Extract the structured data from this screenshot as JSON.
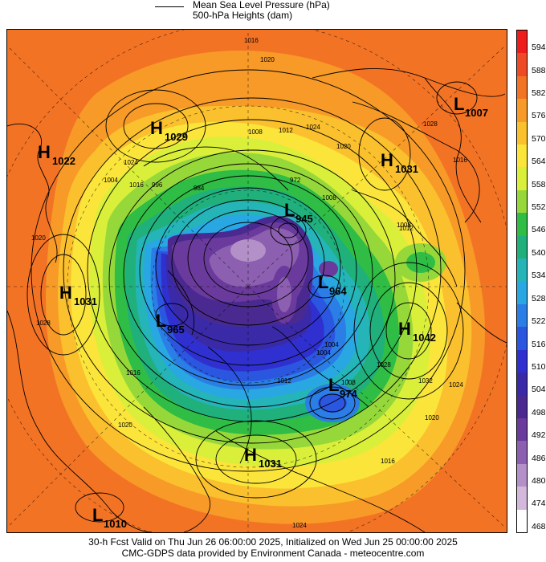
{
  "legend": {
    "line_label": "Mean Sea Level Pressure (hPa)",
    "fill_label": "500-hPa Heights (dam)"
  },
  "colorbar": {
    "levels": [
      "594",
      "588",
      "582",
      "576",
      "570",
      "564",
      "558",
      "552",
      "546",
      "540",
      "534",
      "528",
      "522",
      "516",
      "510",
      "504",
      "498",
      "492",
      "486",
      "480",
      "474",
      "468"
    ],
    "colors": [
      "#ee1c1c",
      "#ef4a26",
      "#f37325",
      "#f79a27",
      "#fbc02d",
      "#fbe53b",
      "#d9ef3a",
      "#96d83a",
      "#2fbd45",
      "#1fb07c",
      "#25b4b8",
      "#29a7e3",
      "#2a7ee6",
      "#2b56e0",
      "#2f30cf",
      "#3a2aa8",
      "#4a2a90",
      "#6a3a9c",
      "#8c5fb0",
      "#b391c8",
      "#d3b8dc",
      "#ffffff"
    ]
  },
  "systems": [
    {
      "type": "H",
      "value": "1029"
    },
    {
      "type": "H",
      "value": "1022"
    },
    {
      "type": "H",
      "value": "1031"
    },
    {
      "type": "L",
      "value": "1007"
    },
    {
      "type": "H",
      "value": "1031"
    },
    {
      "type": "L",
      "value": "945"
    },
    {
      "type": "L",
      "value": "964"
    },
    {
      "type": "L",
      "value": "965"
    },
    {
      "type": "H",
      "value": "1042"
    },
    {
      "type": "L",
      "value": "974"
    },
    {
      "type": "H",
      "value": "1031"
    },
    {
      "type": "L",
      "value": "1010"
    }
  ],
  "isobar_labels": [
    "1016",
    "1020",
    "1024",
    "1020",
    "1028",
    "1016",
    "1012",
    "1008",
    "1004",
    "996",
    "984",
    "972",
    "1024",
    "1020",
    "1016",
    "1008",
    "1008",
    "1012",
    "1004",
    "1004",
    "1028",
    "1032",
    "1024",
    "1020",
    "1016",
    "1016",
    "1008",
    "1012",
    "1024",
    "1020",
    "1028"
  ],
  "footer": {
    "line1": "30-h Fcst Valid on Thu Jun 26 06:00:00 2025, Initialized on Wed Jun 25 00:00:00 2025",
    "line2": "CMC-GDPS data provided by Environment Canada - meteocentre.com"
  }
}
